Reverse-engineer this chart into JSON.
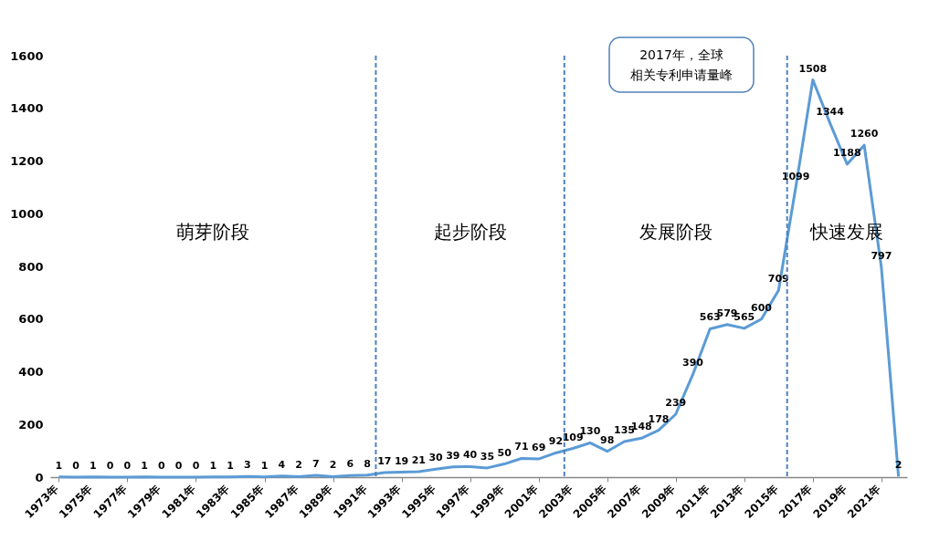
{
  "chart_data": {
    "type": "line",
    "x": [
      1973,
      1974,
      1975,
      1976,
      1977,
      1978,
      1979,
      1980,
      1981,
      1982,
      1983,
      1984,
      1985,
      1986,
      1987,
      1988,
      1989,
      1990,
      1991,
      1992,
      1993,
      1994,
      1995,
      1996,
      1997,
      1998,
      1999,
      2000,
      2001,
      2002,
      2003,
      2004,
      2005,
      2006,
      2007,
      2008,
      2009,
      2010,
      2011,
      2012,
      2013,
      2014,
      2015,
      2016,
      2017,
      2018,
      2019,
      2020,
      2021,
      2022
    ],
    "series": [
      {
        "color": "#5b9bd5",
        "values": [
          1,
          0,
          1,
          0,
          0,
          1,
          0,
          0,
          0,
          1,
          1,
          3,
          1,
          4,
          2,
          7,
          2,
          6,
          8,
          17,
          19,
          21,
          30,
          39,
          40,
          35,
          50,
          71,
          69,
          92,
          109,
          130,
          98,
          135,
          148,
          178,
          239,
          390,
          563,
          579,
          565,
          600,
          709,
          1099,
          1508,
          1344,
          1188,
          1260,
          797,
          2
        ]
      }
    ],
    "data_labels": true,
    "marker": "none",
    "grid": false,
    "xlim": [
      1972.5,
      2022.5
    ],
    "xticks": [
      {
        "value": 1973,
        "label": "1973年"
      },
      {
        "value": 1975,
        "label": "1975年"
      },
      {
        "value": 1977,
        "label": "1977年"
      },
      {
        "value": 1979,
        "label": "1979年"
      },
      {
        "value": 1981,
        "label": "1981年"
      },
      {
        "value": 1983,
        "label": "1983年"
      },
      {
        "value": 1985,
        "label": "1985年"
      },
      {
        "value": 1987,
        "label": "1987年"
      },
      {
        "value": 1989,
        "label": "1989年"
      },
      {
        "value": 1991,
        "label": "1991年"
      },
      {
        "value": 1993,
        "label": "1993年"
      },
      {
        "value": 1995,
        "label": "1995年"
      },
      {
        "value": 1997,
        "label": "1997年"
      },
      {
        "value": 1999,
        "label": "1999年"
      },
      {
        "value": 2001,
        "label": "2001年"
      },
      {
        "value": 2003,
        "label": "2003年"
      },
      {
        "value": 2005,
        "label": "2005年"
      },
      {
        "value": 2007,
        "label": "2007年"
      },
      {
        "value": 2009,
        "label": "2009年"
      },
      {
        "value": 2011,
        "label": "2011年"
      },
      {
        "value": 2013,
        "label": "2013年"
      },
      {
        "value": 2015,
        "label": "2015年"
      },
      {
        "value": 2017,
        "label": "2017年"
      },
      {
        "value": 2019,
        "label": "2019年"
      },
      {
        "value": 2021,
        "label": "2021年"
      }
    ],
    "ylim": [
      0,
      1600
    ],
    "yticks": [
      0,
      200,
      400,
      600,
      800,
      1000,
      1200,
      1400,
      1600
    ],
    "ref_lines": [
      {
        "axis": "x",
        "value": 1991.5,
        "color": "#4f81bd",
        "line_style": "dashed"
      },
      {
        "axis": "x",
        "value": 2002.5,
        "color": "#4f81bd",
        "line_style": "dashed"
      },
      {
        "axis": "x",
        "value": 2015.5,
        "color": "#4f81bd",
        "line_style": "dashed"
      }
    ],
    "annotations": [
      "萌芽阶段",
      "起步阶段",
      "发展阶段",
      "快速发展",
      "2017年，全球相关专利申请量峰"
    ]
  }
}
